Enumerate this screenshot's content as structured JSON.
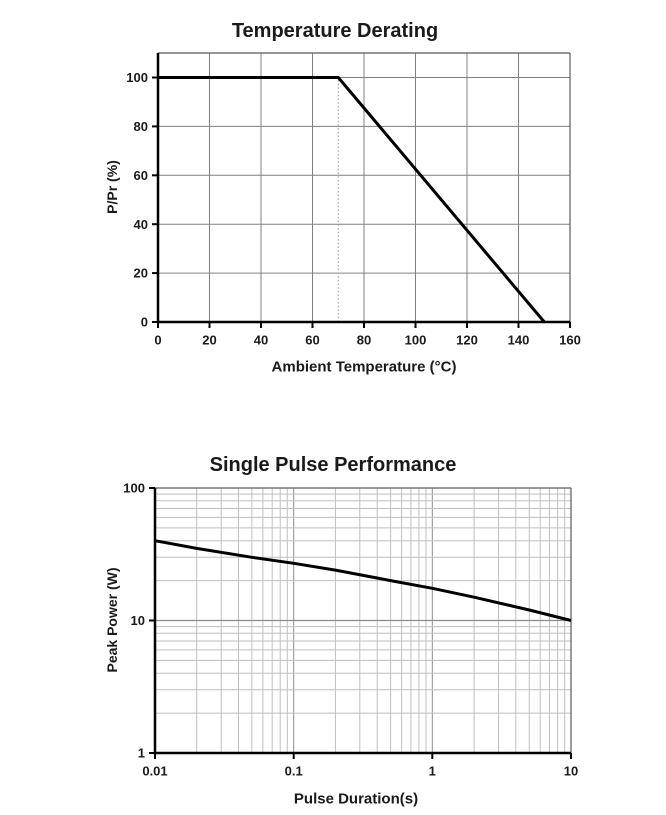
{
  "page": {
    "background": "#ffffff"
  },
  "colors": {
    "text": "#1a1a1a",
    "axis": "#000000",
    "border": "#595959",
    "grid_major": "#808080",
    "grid_log_major": "#8c8c8c",
    "grid_log_minor": "#bfbfbf",
    "dotted_line": "#a6a6a6",
    "curve": "#000000"
  },
  "chart_data": [
    {
      "type": "line",
      "title": "Temperature Derating",
      "xlabel": "Ambient Temperature (°C)",
      "ylabel": "P/Pr (%)",
      "x_scale": "linear",
      "y_scale": "linear",
      "xlim": [
        0,
        160
      ],
      "ylim": [
        0,
        110
      ],
      "x_ticks": [
        0,
        20,
        40,
        60,
        80,
        100,
        120,
        140,
        160
      ],
      "y_ticks": [
        0,
        20,
        40,
        60,
        80,
        100
      ],
      "grid": true,
      "legend": "none",
      "series": [
        {
          "name": "derating-line",
          "points": [
            [
              0,
              100
            ],
            [
              70,
              100
            ],
            [
              150,
              0
            ]
          ]
        }
      ],
      "annotations": [
        {
          "type": "dotted-vline",
          "x": 70,
          "y_from": 0,
          "y_to": 100
        }
      ]
    },
    {
      "type": "line",
      "title": "Single Pulse Performance",
      "xlabel": "Pulse Duration(s)",
      "ylabel": "Peak Power (W)",
      "x_scale": "log",
      "y_scale": "log",
      "xlim": [
        0.01,
        10
      ],
      "ylim": [
        1,
        100
      ],
      "x_ticks": [
        0.01,
        0.1,
        1,
        10
      ],
      "x_tick_labels": [
        "0.01",
        "0.1",
        "1",
        "10"
      ],
      "y_ticks": [
        1,
        10,
        100
      ],
      "grid": true,
      "legend": "none",
      "series": [
        {
          "name": "single-pulse-line",
          "points": [
            [
              0.01,
              40
            ],
            [
              0.02,
              35
            ],
            [
              0.05,
              30
            ],
            [
              0.1,
              27
            ],
            [
              0.2,
              24
            ],
            [
              0.5,
              20
            ],
            [
              1,
              17.5
            ],
            [
              2,
              15
            ],
            [
              5,
              12
            ],
            [
              10,
              10
            ]
          ]
        }
      ],
      "annotations": []
    }
  ]
}
